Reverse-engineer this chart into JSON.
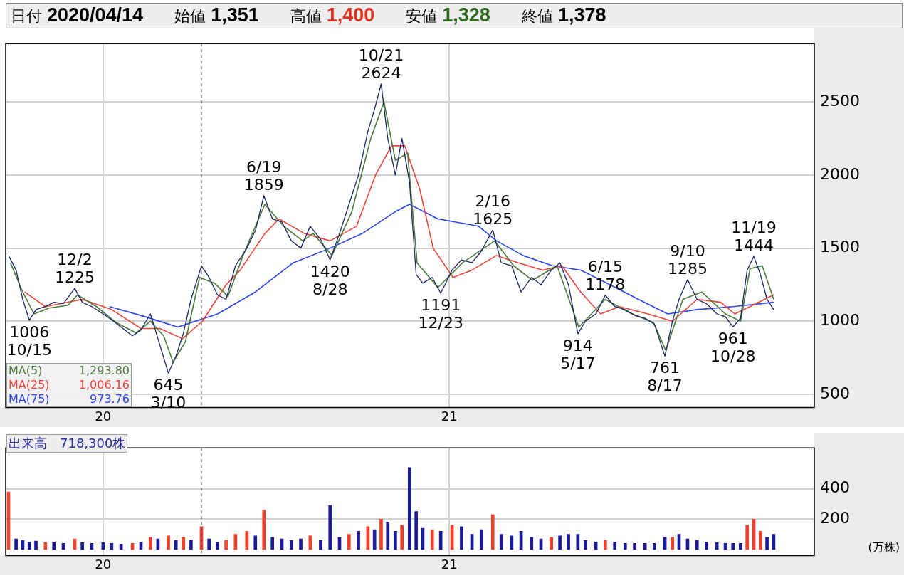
{
  "chart_data": [
    {
      "type": "line",
      "x": [
        "2019-09-23",
        "2019-10-01",
        "2019-10-08",
        "2019-10-15",
        "2019-10-22",
        "2019-11-01",
        "2019-11-10",
        "2019-11-20",
        "2019-12-02",
        "2019-12-10",
        "2019-12-20",
        "2020-01-01",
        "2020-01-10",
        "2020-01-20",
        "2020-02-01",
        "2020-02-10",
        "2020-02-20",
        "2020-02-28",
        "2020-03-10",
        "2020-03-18",
        "2020-03-26",
        "2020-04-03",
        "2020-04-14",
        "2020-04-22",
        "2020-05-01",
        "2020-05-10",
        "2020-05-20",
        "2020-06-01",
        "2020-06-10",
        "2020-06-19",
        "2020-06-28",
        "2020-07-08",
        "2020-07-18",
        "2020-07-28",
        "2020-08-07",
        "2020-08-18",
        "2020-08-28",
        "2020-09-07",
        "2020-09-17",
        "2020-09-27",
        "2020-10-07",
        "2020-10-14",
        "2020-10-21",
        "2020-10-28",
        "2020-11-05",
        "2020-11-12",
        "2020-11-20",
        "2020-11-27",
        "2020-12-04",
        "2020-12-14",
        "2020-12-23",
        "2021-01-04",
        "2021-01-14",
        "2021-01-25",
        "2021-02-04",
        "2021-02-16",
        "2021-02-25",
        "2021-03-08",
        "2021-03-18",
        "2021-03-29",
        "2021-04-08",
        "2021-04-19",
        "2021-04-28",
        "2021-05-07",
        "2021-05-17",
        "2021-05-25",
        "2021-06-05",
        "2021-06-15",
        "2021-06-25",
        "2021-07-06",
        "2021-07-16",
        "2021-07-27",
        "2021-08-06",
        "2021-08-17",
        "2021-08-25",
        "2021-09-01",
        "2021-09-10",
        "2021-09-20",
        "2021-09-30",
        "2021-10-11",
        "2021-10-20",
        "2021-10-28",
        "2021-11-05",
        "2021-11-12",
        "2021-11-19",
        "2021-11-26",
        "2021-12-03",
        "2021-12-10"
      ],
      "series": [
        {
          "color": "#1a2466",
          "values": [
            1450,
            1350,
            1150,
            1006,
            1080,
            1100,
            1130,
            1120,
            1225,
            1130,
            1100,
            1050,
            1010,
            960,
            900,
            940,
            1050,
            880,
            645,
            760,
            920,
            1150,
            1378,
            1300,
            1180,
            1150,
            1380,
            1500,
            1620,
            1859,
            1700,
            1680,
            1550,
            1500,
            1650,
            1560,
            1420,
            1600,
            1800,
            2000,
            2300,
            2450,
            2624,
            2250,
            2000,
            2250,
            1950,
            1320,
            1260,
            1300,
            1191,
            1350,
            1420,
            1400,
            1480,
            1625,
            1400,
            1380,
            1200,
            1300,
            1250,
            1350,
            1400,
            1250,
            914,
            1000,
            1050,
            1178,
            1100,
            1080,
            1040,
            1020,
            980,
            761,
            1000,
            1150,
            1285,
            1150,
            1120,
            1050,
            1030,
            961,
            1020,
            1350,
            1444,
            1320,
            1150,
            1080
          ]
        },
        {
          "name": "MA(5)",
          "color": "#4a7a3a",
          "x": [
            "2019-09-25",
            "2019-10-08",
            "2019-10-20",
            "2019-11-05",
            "2019-11-25",
            "2019-12-05",
            "2019-12-25",
            "2020-01-15",
            "2020-02-05",
            "2020-02-20",
            "2020-03-05",
            "2020-03-15",
            "2020-03-28",
            "2020-04-12",
            "2020-04-28",
            "2020-05-12",
            "2020-05-28",
            "2020-06-20",
            "2020-07-10",
            "2020-07-30",
            "2020-08-10",
            "2020-08-30",
            "2020-09-20",
            "2020-10-10",
            "2020-10-24",
            "2020-11-05",
            "2020-11-18",
            "2020-11-28",
            "2020-12-20",
            "2021-01-15",
            "2021-02-18",
            "2021-03-10",
            "2021-03-30",
            "2021-04-25",
            "2021-05-18",
            "2021-06-15",
            "2021-07-10",
            "2021-08-05",
            "2021-08-18",
            "2021-09-05",
            "2021-09-25",
            "2021-10-20",
            "2021-11-05",
            "2021-11-15",
            "2021-11-28",
            "2021-12-10"
          ],
          "values": [
            1400,
            1200,
            1050,
            1090,
            1110,
            1180,
            1100,
            990,
            920,
            1000,
            900,
            720,
            860,
            1300,
            1260,
            1170,
            1450,
            1800,
            1650,
            1550,
            1600,
            1450,
            1750,
            2250,
            2500,
            2100,
            2150,
            1400,
            1230,
            1400,
            1550,
            1380,
            1280,
            1380,
            960,
            1150,
            1060,
            990,
            800,
            1150,
            1200,
            1050,
            1000,
            1360,
            1380,
            1150
          ]
        },
        {
          "name": "MA(25)",
          "color": "#f0443a",
          "x": [
            "2019-10-10",
            "2019-11-01",
            "2019-12-10",
            "2020-01-10",
            "2020-02-10",
            "2020-03-01",
            "2020-03-25",
            "2020-04-15",
            "2020-05-10",
            "2020-05-25",
            "2020-06-20",
            "2020-07-05",
            "2020-08-01",
            "2020-08-28",
            "2020-09-25",
            "2020-10-15",
            "2020-11-01",
            "2020-11-15",
            "2020-12-01",
            "2020-12-15",
            "2021-01-05",
            "2021-01-25",
            "2021-02-20",
            "2021-03-15",
            "2021-04-10",
            "2021-04-30",
            "2021-05-20",
            "2021-06-10",
            "2021-06-30",
            "2021-07-30",
            "2021-08-25",
            "2021-09-20",
            "2021-10-15",
            "2021-10-30",
            "2021-12-10"
          ],
          "values": [
            1200,
            1100,
            1150,
            1080,
            950,
            950,
            880,
            1000,
            1250,
            1350,
            1600,
            1700,
            1600,
            1550,
            1650,
            2000,
            2200,
            2200,
            1900,
            1500,
            1300,
            1350,
            1450,
            1400,
            1350,
            1380,
            1200,
            1050,
            1100,
            1050,
            1000,
            1150,
            1130,
            1050,
            1180
          ]
        },
        {
          "name": "MA(75)",
          "color": "#2a44f0",
          "x": [
            "2020-01-08",
            "2020-02-15",
            "2020-03-20",
            "2020-05-01",
            "2020-06-10",
            "2020-07-20",
            "2020-08-28",
            "2020-10-01",
            "2020-11-05",
            "2020-11-20",
            "2020-12-20",
            "2021-02-01",
            "2021-02-20",
            "2021-03-20",
            "2021-04-20",
            "2021-05-20",
            "2021-06-20",
            "2021-07-20",
            "2021-08-20",
            "2021-09-20",
            "2021-10-28",
            "2021-12-10"
          ],
          "values": [
            1100,
            1030,
            960,
            1050,
            1200,
            1400,
            1500,
            1600,
            1750,
            1800,
            1700,
            1650,
            1550,
            1450,
            1380,
            1350,
            1250,
            1150,
            1050,
            1080,
            1100,
            1130
          ]
        }
      ],
      "xlim": [
        "2019-09-20",
        "2022-01-22"
      ],
      "xticks": [
        {
          "value": "2020-01-01",
          "label": "20"
        },
        {
          "value": "2021-01-01",
          "label": "21"
        }
      ],
      "ylim": [
        410,
        2900
      ],
      "yticks": [
        500,
        1000,
        1500,
        2000,
        2500
      ],
      "grid": true,
      "legend": "bottom left",
      "ref_lines": [
        {
          "axis": "x",
          "value": "2020-04-14",
          "line_style": "dashed"
        }
      ],
      "annotations": [
        "日付 2020/04/14",
        "始値 1,351",
        "高値 1,400",
        "安値 1,328",
        "終値 1,378",
        "1,293.80",
        "1,006.16",
        "973.76",
        {
          "text": "1006\n10/15",
          "x": "2019-10-15",
          "y": 1006
        },
        {
          "text": "12/2\n1225",
          "x": "2019-12-02",
          "y": 1225
        },
        {
          "text": "645\n3/10",
          "x": "2020-03-10",
          "y": 645
        },
        {
          "text": "6/19\n1859",
          "x": "2020-06-19",
          "y": 1859
        },
        {
          "text": "1420\n8/28",
          "x": "2020-08-28",
          "y": 1420
        },
        {
          "text": "10/21\n2624",
          "x": "2020-10-21",
          "y": 2624
        },
        {
          "text": "1191\n12/23",
          "x": "2020-12-23",
          "y": 1191
        },
        {
          "text": "2/16\n1625",
          "x": "2021-02-16",
          "y": 1625
        },
        {
          "text": "914\n5/17",
          "x": "2021-05-17",
          "y": 914
        },
        {
          "text": "6/15\n1178",
          "x": "2021-06-15",
          "y": 1178
        },
        {
          "text": "761\n8/17",
          "x": "2021-08-17",
          "y": 761
        },
        {
          "text": "9/10\n1285",
          "x": "2021-09-10",
          "y": 1285
        },
        {
          "text": "961\n10/28",
          "x": "2021-10-28",
          "y": 961
        },
        {
          "text": "11/19\n1444",
          "x": "2021-11-19",
          "y": 1444
        }
      ]
    },
    {
      "type": "bar",
      "x": [
        "2019-09-23",
        "2019-10-01",
        "2019-10-08",
        "2019-10-15",
        "2019-10-22",
        "2019-11-01",
        "2019-11-10",
        "2019-11-20",
        "2019-12-02",
        "2019-12-10",
        "2019-12-20",
        "2020-01-01",
        "2020-01-10",
        "2020-01-20",
        "2020-02-01",
        "2020-02-10",
        "2020-02-20",
        "2020-02-28",
        "2020-03-10",
        "2020-03-18",
        "2020-03-26",
        "2020-04-03",
        "2020-04-14",
        "2020-04-22",
        "2020-05-01",
        "2020-05-10",
        "2020-05-20",
        "2020-06-01",
        "2020-06-10",
        "2020-06-19",
        "2020-06-28",
        "2020-07-08",
        "2020-07-18",
        "2020-07-28",
        "2020-08-07",
        "2020-08-18",
        "2020-08-28",
        "2020-09-07",
        "2020-09-17",
        "2020-09-27",
        "2020-10-07",
        "2020-10-14",
        "2020-10-21",
        "2020-10-28",
        "2020-11-05",
        "2020-11-12",
        "2020-11-20",
        "2020-11-27",
        "2020-12-04",
        "2020-12-14",
        "2020-12-23",
        "2021-01-04",
        "2021-01-14",
        "2021-01-25",
        "2021-02-04",
        "2021-02-16",
        "2021-02-25",
        "2021-03-08",
        "2021-03-18",
        "2021-03-29",
        "2021-04-08",
        "2021-04-19",
        "2021-04-28",
        "2021-05-07",
        "2021-05-17",
        "2021-05-25",
        "2021-06-05",
        "2021-06-15",
        "2021-06-25",
        "2021-07-06",
        "2021-07-16",
        "2021-07-27",
        "2021-08-06",
        "2021-08-17",
        "2021-08-25",
        "2021-09-01",
        "2021-09-10",
        "2021-09-20",
        "2021-09-30",
        "2021-10-11",
        "2021-10-20",
        "2021-10-28",
        "2021-11-05",
        "2021-11-12",
        "2021-11-19",
        "2021-11-26",
        "2021-12-03",
        "2021-12-10"
      ],
      "values": [
        380,
        70,
        60,
        50,
        55,
        45,
        50,
        40,
        70,
        45,
        40,
        45,
        40,
        35,
        40,
        50,
        80,
        70,
        90,
        60,
        80,
        60,
        150,
        70,
        50,
        60,
        100,
        120,
        90,
        260,
        80,
        70,
        60,
        70,
        90,
        60,
        290,
        80,
        100,
        120,
        150,
        130,
        200,
        180,
        120,
        160,
        540,
        250,
        140,
        130,
        120,
        160,
        150,
        100,
        130,
        230,
        100,
        90,
        120,
        80,
        70,
        80,
        90,
        100,
        100,
        60,
        50,
        60,
        50,
        40,
        40,
        40,
        40,
        80,
        80,
        100,
        70,
        60,
        50,
        45,
        40,
        40,
        40,
        160,
        200,
        120,
        80,
        100
      ],
      "colors": [
        "#f0402a",
        "#1a1a9a",
        "#1a1a9a",
        "#1a1a9a",
        "#1a1a9a",
        "#f0402a",
        "#1a1a9a",
        "#1a1a9a",
        "#f0402a",
        "#1a1a9a",
        "#1a1a9a",
        "#1a1a9a",
        "#1a1a9a",
        "#1a1a9a",
        "#f0402a",
        "#1a1a9a",
        "#f0402a",
        "#1a1a9a",
        "#f0402a",
        "#1a1a9a",
        "#f0402a",
        "#1a1a9a",
        "#f0402a",
        "#1a1a9a",
        "#1a1a9a",
        "#f0402a",
        "#f0402a",
        "#f0402a",
        "#1a1a9a",
        "#f0402a",
        "#1a1a9a",
        "#1a1a9a",
        "#1a1a9a",
        "#1a1a9a",
        "#f0402a",
        "#1a1a9a",
        "#1a1a9a",
        "#1a1a9a",
        "#f0402a",
        "#1a1a9a",
        "#f0402a",
        "#1a1a9a",
        "#f0402a",
        "#1a1a9a",
        "#1a1a9a",
        "#f0402a",
        "#1a1a9a",
        "#1a1a9a",
        "#1a1a9a",
        "#f0402a",
        "#1a1a9a",
        "#f0402a",
        "#1a1a9a",
        "#1a1a9a",
        "#1a1a9a",
        "#f0402a",
        "#1a1a9a",
        "#1a1a9a",
        "#1a1a9a",
        "#1a1a9a",
        "#1a1a9a",
        "#f0402a",
        "#1a1a9a",
        "#1a1a9a",
        "#1a1a9a",
        "#1a1a9a",
        "#1a1a9a",
        "#f0402a",
        "#1a1a9a",
        "#1a1a9a",
        "#1a1a9a",
        "#1a1a9a",
        "#1a1a9a",
        "#1a1a9a",
        "#f0402a",
        "#1a1a9a",
        "#1a1a9a",
        "#1a1a9a",
        "#1a1a9a",
        "#1a1a9a",
        "#1a1a9a",
        "#1a1a9a",
        "#1a1a9a",
        "#f0402a",
        "#f0402a",
        "#f0402a",
        "#1a1a9a",
        "#1a1a9a"
      ],
      "xlim": [
        "2019-09-20",
        "2022-01-22"
      ],
      "xticks": [
        {
          "value": "2020-01-01",
          "label": "20"
        },
        {
          "value": "2021-01-01",
          "label": "21"
        }
      ],
      "ylim": [
        -40,
        670
      ],
      "yticks": [
        200,
        400
      ],
      "ylabel": "(万株)",
      "grid": true,
      "ref_lines": [
        {
          "axis": "x",
          "value": "2020-04-14",
          "line_style": "dashed"
        }
      ],
      "annotations": [
        "出来高　718,300株"
      ]
    }
  ]
}
